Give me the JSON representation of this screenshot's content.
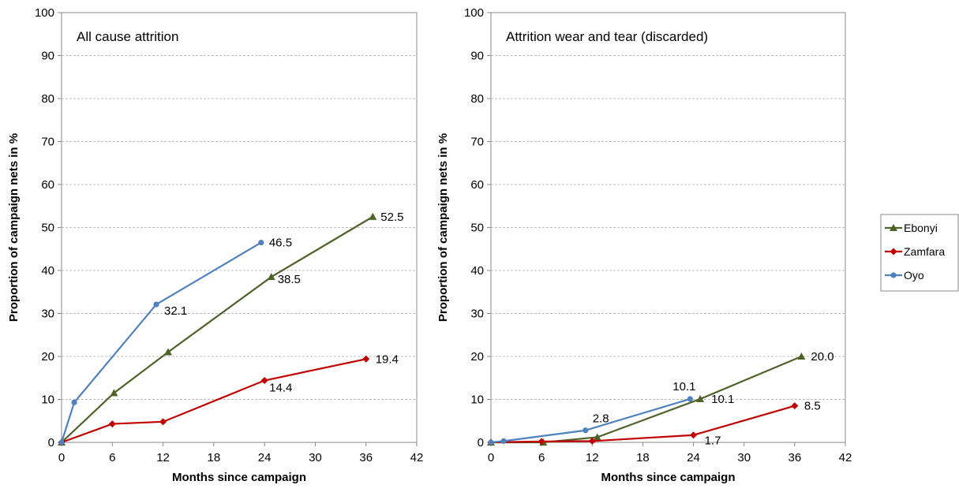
{
  "chart_data": [
    {
      "type": "line",
      "title": "All cause attrition",
      "xlabel": "Months since campaign",
      "ylabel": "Proportion of campaign nets in %",
      "xlim": [
        0,
        42
      ],
      "ylim": [
        0,
        100
      ],
      "xticks": [
        "0",
        "6",
        "12",
        "18",
        "24",
        "30",
        "36",
        "42"
      ],
      "yticks": [
        "0",
        "10",
        "20",
        "30",
        "40",
        "50",
        "60",
        "70",
        "80",
        "90",
        "100"
      ],
      "grid": "horizontal",
      "series": [
        {
          "name": "Ebonyi",
          "color": "#4f6228",
          "marker": "triangle",
          "x": [
            0,
            6.2,
            12.6,
            24.8,
            36.8
          ],
          "y": [
            0,
            11.5,
            21.0,
            38.5,
            52.5
          ],
          "labels": [
            "",
            "",
            "",
            "38.5",
            "52.5"
          ]
        },
        {
          "name": "Zamfara",
          "color": "#c00000",
          "marker": "diamond",
          "x": [
            0,
            6,
            12,
            24,
            36
          ],
          "y": [
            0,
            4.3,
            4.8,
            14.4,
            19.4
          ],
          "labels": [
            "",
            "",
            "",
            "14.4",
            "19.4"
          ]
        },
        {
          "name": "Oyo",
          "color": "#4f81bd",
          "marker": "circle",
          "x": [
            0,
            1.5,
            11.2,
            23.6
          ],
          "y": [
            0,
            9.3,
            32.1,
            46.5
          ],
          "labels": [
            "",
            "",
            "32.1",
            "46.5"
          ]
        }
      ]
    },
    {
      "type": "line",
      "title": "Attrition wear and tear (discarded)",
      "xlabel": "Months since campaign",
      "ylabel": "Proportion of campaign nets in %",
      "xlim": [
        0,
        42
      ],
      "ylim": [
        0,
        100
      ],
      "xticks": [
        "0",
        "6",
        "12",
        "18",
        "24",
        "30",
        "36",
        "42"
      ],
      "yticks": [
        "0",
        "10",
        "20",
        "30",
        "40",
        "50",
        "60",
        "70",
        "80",
        "90",
        "100"
      ],
      "grid": "horizontal",
      "series": [
        {
          "name": "Ebonyi",
          "color": "#4f6228",
          "marker": "triangle",
          "x": [
            0,
            6.2,
            12.6,
            24.8,
            36.8
          ],
          "y": [
            0,
            0,
            1.2,
            10.1,
            20.0
          ],
          "labels": [
            "",
            "",
            "",
            "10.1",
            "20.0"
          ]
        },
        {
          "name": "Zamfara",
          "color": "#c00000",
          "marker": "diamond",
          "x": [
            0,
            6,
            12,
            24,
            36
          ],
          "y": [
            0,
            0.2,
            0.3,
            1.7,
            8.5
          ],
          "labels": [
            "",
            "",
            "",
            "1.7",
            "8.5"
          ]
        },
        {
          "name": "Oyo",
          "color": "#4f81bd",
          "marker": "circle",
          "x": [
            0,
            1.5,
            11.2,
            23.6
          ],
          "y": [
            0,
            0.3,
            2.8,
            10.1
          ],
          "labels": [
            "",
            "",
            "2.8",
            "10.1"
          ]
        }
      ]
    }
  ],
  "legend": {
    "placement": "right",
    "items": [
      {
        "name": "Ebonyi",
        "color": "#4f6228",
        "marker": "triangle"
      },
      {
        "name": "Zamfara",
        "color": "#c00000",
        "marker": "diamond"
      },
      {
        "name": "Oyo",
        "color": "#4f81bd",
        "marker": "circle"
      }
    ]
  }
}
